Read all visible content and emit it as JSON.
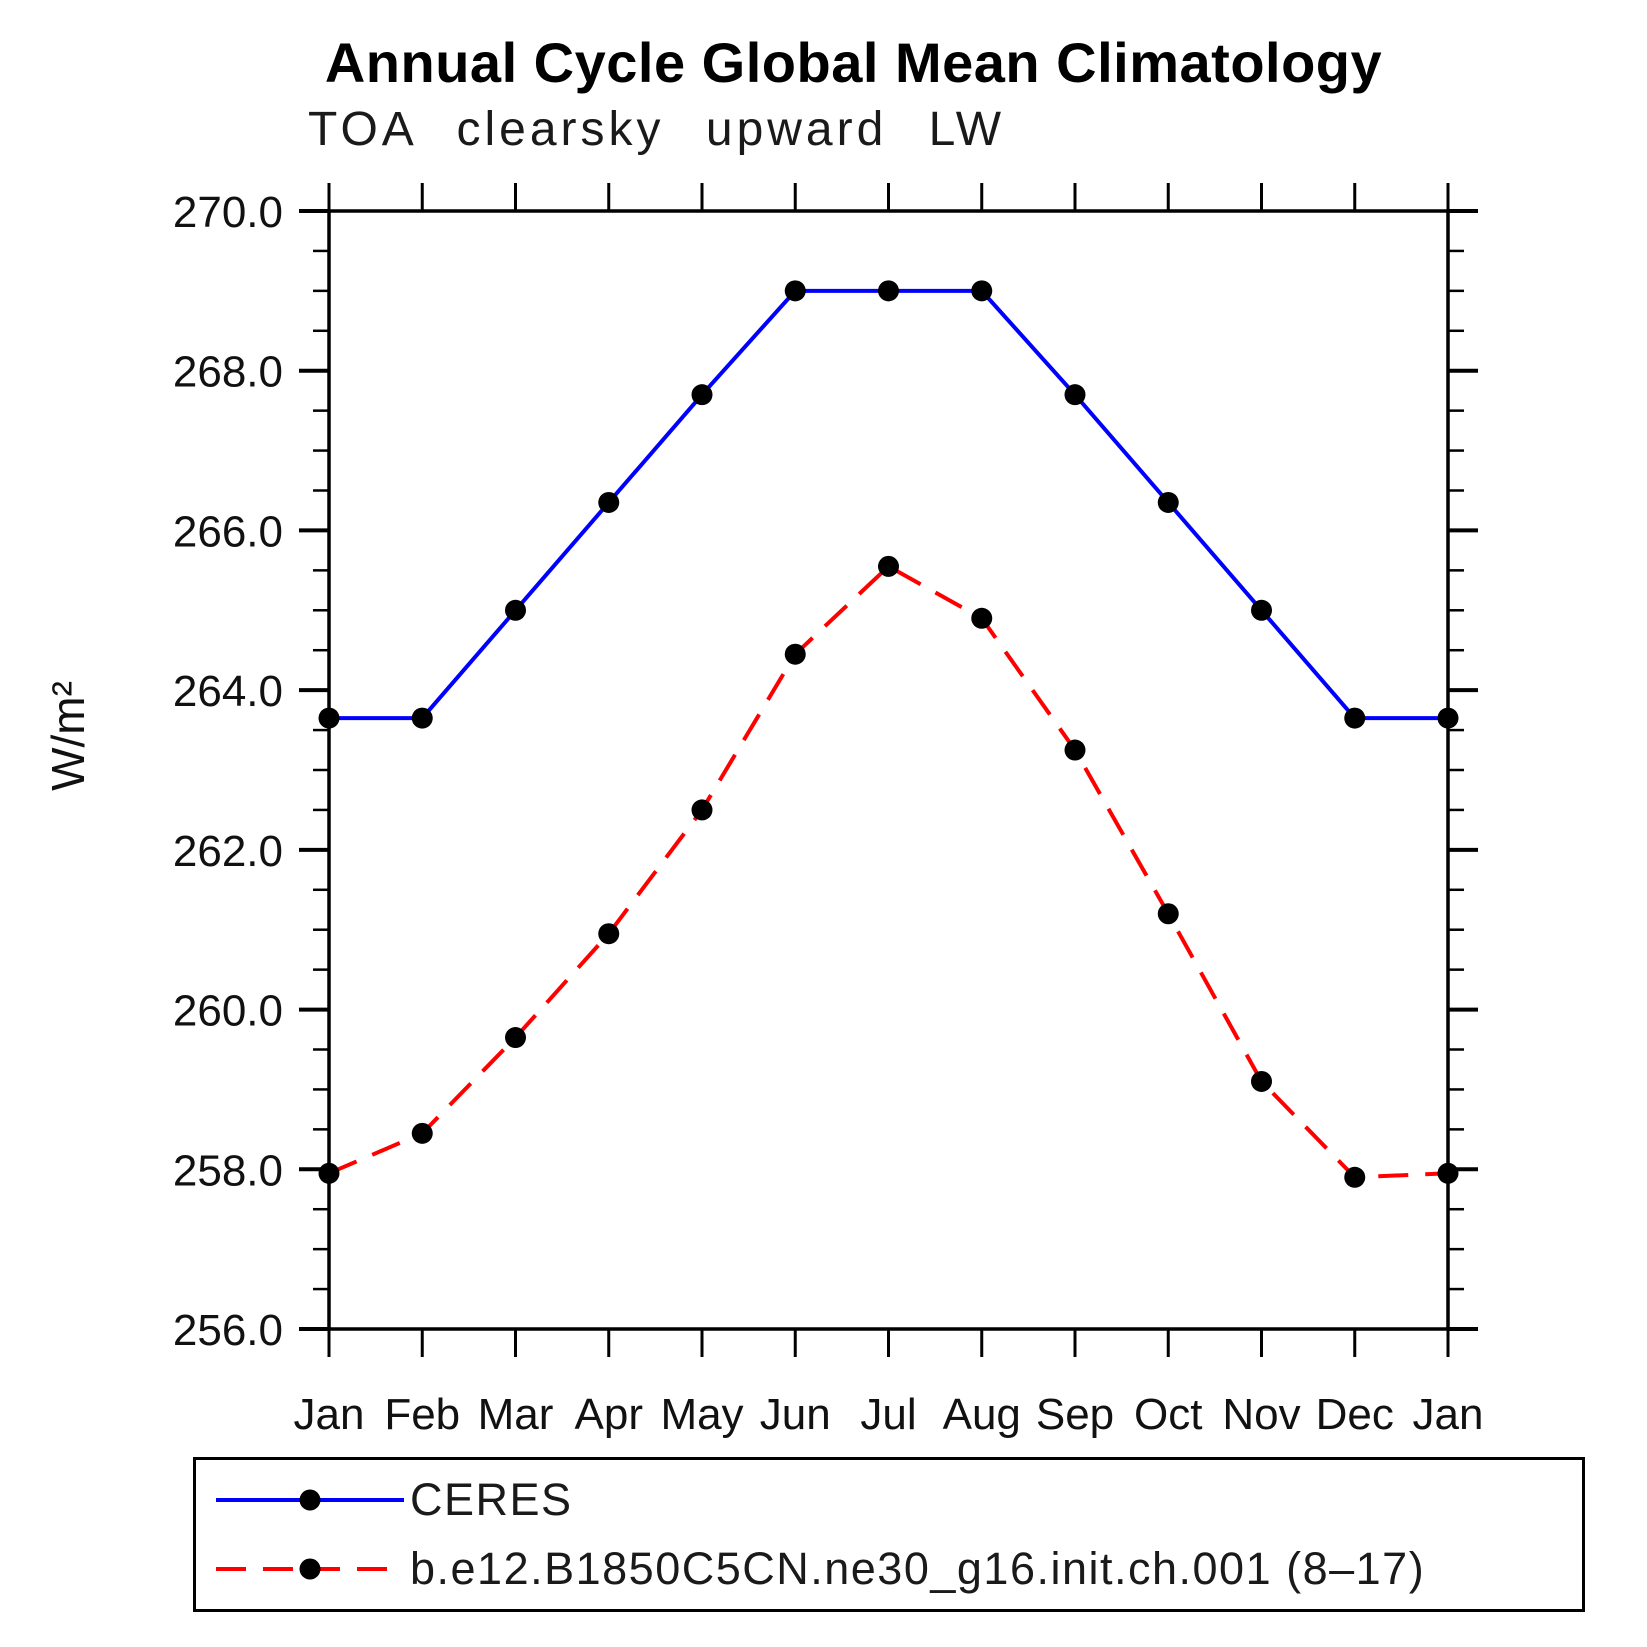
{
  "title": "Annual Cycle Global Mean Climatology",
  "subtitle": "TOA clearsky upward LW",
  "chart_data": {
    "type": "line",
    "title": "Annual Cycle Global Mean Climatology",
    "subtitle": "TOA clearsky upward LW",
    "xlabel": "",
    "ylabel": "W/m²",
    "categories": [
      "Jan",
      "Feb",
      "Mar",
      "Apr",
      "May",
      "Jun",
      "Jul",
      "Aug",
      "Sep",
      "Oct",
      "Nov",
      "Dec",
      "Jan"
    ],
    "ylim": [
      256.0,
      270.0
    ],
    "ytick_major_step": 2.0,
    "ytick_minor_step": 0.5,
    "ytick_labels": [
      "256.0",
      "258.0",
      "260.0",
      "262.0",
      "264.0",
      "266.0",
      "268.0",
      "270.0"
    ],
    "grid": false,
    "legend_position": "bottom-left",
    "axis_color": "#000000",
    "series": [
      {
        "name": "CERES",
        "color": "#0000ff",
        "line_style": "solid",
        "marker": "filled-circle",
        "marker_color": "#000000",
        "values": [
          263.65,
          263.65,
          265.0,
          266.35,
          267.7,
          269.0,
          269.0,
          269.0,
          267.7,
          266.35,
          265.0,
          263.65,
          263.65
        ]
      },
      {
        "name": "b.e12.B1850C5CN.ne30_g16.init.ch.001 (8–17)",
        "color": "#ff0000",
        "line_style": "dashed",
        "marker": "filled-circle",
        "marker_color": "#000000",
        "values": [
          257.95,
          258.45,
          259.65,
          260.95,
          262.5,
          264.45,
          265.55,
          264.9,
          263.25,
          261.2,
          259.1,
          257.9,
          257.95
        ]
      }
    ]
  }
}
